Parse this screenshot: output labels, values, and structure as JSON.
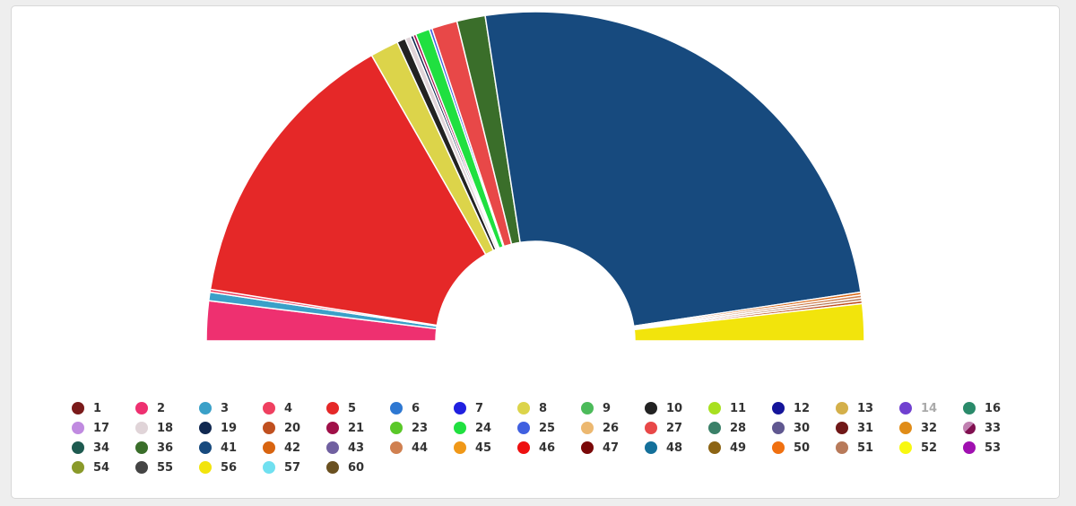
{
  "chart_data": {
    "type": "pie",
    "variant": "semicircle-donut",
    "title": "",
    "slices": [
      {
        "name": "2",
        "value": 14,
        "color": "#ee3070"
      },
      {
        "name": "3",
        "value": 3,
        "color": "#3aa0c8"
      },
      {
        "name": "4",
        "value": 1,
        "color": "#ef4060"
      },
      {
        "name": "5",
        "value": 102,
        "color": "#e52828"
      },
      {
        "name": "8",
        "value": 10,
        "color": "#dcd44a"
      },
      {
        "name": "10",
        "value": 3,
        "color": "#222222"
      },
      {
        "name": "18",
        "value": 2,
        "color": "#e0d4d8"
      },
      {
        "name": "19",
        "value": 1,
        "color": "#102850"
      },
      {
        "name": "21",
        "value": 1,
        "color": "#a01048"
      },
      {
        "name": "24",
        "value": 5,
        "color": "#20e040"
      },
      {
        "name": "25",
        "value": 1,
        "color": "#4060e0"
      },
      {
        "name": "27",
        "value": 9,
        "color": "#e84848"
      },
      {
        "name": "36",
        "value": 10,
        "color": "#3a6e2a"
      },
      {
        "name": "41",
        "value": 180,
        "color": "#174a7e"
      },
      {
        "name": "42",
        "value": 1,
        "color": "#d86410"
      },
      {
        "name": "44",
        "value": 1,
        "color": "#d08050"
      },
      {
        "name": "51",
        "value": 1,
        "color": "#b87a5a"
      },
      {
        "name": "20",
        "value": 1,
        "color": "#c05020"
      },
      {
        "name": "56",
        "value": 13,
        "color": "#f2e40c"
      }
    ],
    "legend": {
      "placement": "bottom",
      "items": [
        {
          "label": "1",
          "color": "#7a1a1a"
        },
        {
          "label": "2",
          "color": "#ee3070"
        },
        {
          "label": "3",
          "color": "#3aa0c8"
        },
        {
          "label": "4",
          "color": "#ef4060"
        },
        {
          "label": "5",
          "color": "#e52828"
        },
        {
          "label": "6",
          "color": "#2e78d2"
        },
        {
          "label": "7",
          "color": "#2020e0"
        },
        {
          "label": "8",
          "color": "#dcd44a"
        },
        {
          "label": "9",
          "color": "#4cbb5a"
        },
        {
          "label": "10",
          "color": "#222222"
        },
        {
          "label": "11",
          "color": "#a8e020"
        },
        {
          "label": "12",
          "color": "#14149a"
        },
        {
          "label": "13",
          "color": "#d4b04a"
        },
        {
          "label": "14",
          "color": "#7040d0",
          "hidden": true
        },
        {
          "label": "16",
          "color": "#2a8a6a"
        },
        {
          "label": "17",
          "color": "#c08ae0"
        },
        {
          "label": "18",
          "color": "#e0d4d8"
        },
        {
          "label": "19",
          "color": "#102850"
        },
        {
          "label": "20",
          "color": "#c05020"
        },
        {
          "label": "21",
          "color": "#a01048"
        },
        {
          "label": "23",
          "color": "#5ac828"
        },
        {
          "label": "24",
          "color": "#20e040"
        },
        {
          "label": "25",
          "color": "#4060e0"
        },
        {
          "label": "26",
          "color": "#ecb870"
        },
        {
          "label": "27",
          "color": "#e84848"
        },
        {
          "label": "28",
          "color": "#3a8068"
        },
        {
          "label": "30",
          "color": "#605890"
        },
        {
          "label": "31",
          "color": "#701818"
        },
        {
          "label": "32",
          "color": "#e08c18"
        },
        {
          "label": "33",
          "color": "#c080b0",
          "color2": "#801050"
        },
        {
          "label": "34",
          "color": "#1e5a50"
        },
        {
          "label": "36",
          "color": "#3a6e2a"
        },
        {
          "label": "41",
          "color": "#174a7e"
        },
        {
          "label": "42",
          "color": "#d86410"
        },
        {
          "label": "43",
          "color": "#7060a0"
        },
        {
          "label": "44",
          "color": "#d08050"
        },
        {
          "label": "45",
          "color": "#f09818"
        },
        {
          "label": "46",
          "color": "#ee1010"
        },
        {
          "label": "47",
          "color": "#7a0808"
        },
        {
          "label": "48",
          "color": "#14709a"
        },
        {
          "label": "49",
          "color": "#8c6414"
        },
        {
          "label": "50",
          "color": "#f07010"
        },
        {
          "label": "51",
          "color": "#b87a5a"
        },
        {
          "label": "52",
          "color": "#f8f810"
        },
        {
          "label": "53",
          "color": "#a010b0"
        },
        {
          "label": "54",
          "color": "#8a9a2a"
        },
        {
          "label": "55",
          "color": "#444444"
        },
        {
          "label": "56",
          "color": "#f2e40c"
        },
        {
          "label": "57",
          "color": "#70e0f0"
        },
        {
          "label": "60",
          "color": "#6a5020"
        }
      ]
    }
  }
}
